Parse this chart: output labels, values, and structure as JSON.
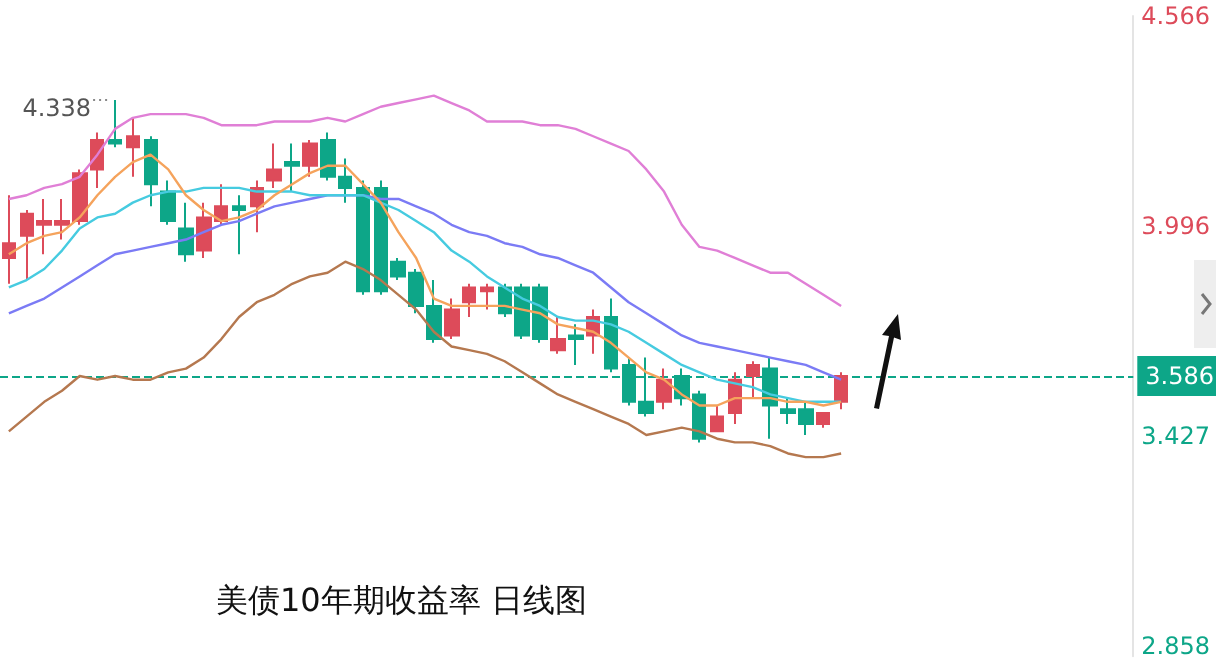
{
  "chart_data": {
    "type": "candlestick",
    "title": "美债10年期收益率 日线图",
    "categories": [
      null,
      null,
      null,
      null,
      null,
      null,
      null,
      null,
      null,
      null,
      null,
      null,
      null,
      null,
      null,
      null,
      null,
      null,
      null,
      null,
      null,
      null,
      null,
      null,
      null,
      null,
      null,
      null,
      null,
      null,
      null,
      null,
      null,
      null,
      null,
      null,
      null,
      null,
      null,
      null,
      null,
      null,
      null,
      null,
      null,
      null,
      null,
      null
    ],
    "ohlc": [
      [
        3.91,
        4.08,
        3.84,
        3.95
      ],
      [
        3.97,
        4.04,
        3.85,
        4.03
      ],
      [
        4.0,
        4.07,
        3.92,
        4.01
      ],
      [
        4.0,
        4.07,
        3.96,
        4.01
      ],
      [
        4.01,
        4.15,
        4.0,
        4.14
      ],
      [
        4.15,
        4.25,
        4.1,
        4.23
      ],
      [
        4.23,
        4.338,
        4.21,
        4.22
      ],
      [
        4.21,
        4.29,
        4.13,
        4.24
      ],
      [
        4.23,
        4.24,
        4.05,
        4.11
      ],
      [
        4.09,
        4.12,
        4.0,
        4.01
      ],
      [
        3.99,
        4.06,
        3.9,
        3.92
      ],
      [
        3.93,
        4.06,
        3.91,
        4.02
      ],
      [
        4.01,
        4.11,
        4.0,
        4.05
      ],
      [
        4.05,
        4.08,
        3.92,
        4.04
      ],
      [
        4.05,
        4.12,
        3.98,
        4.1
      ],
      [
        4.12,
        4.22,
        4.1,
        4.15
      ],
      [
        4.17,
        4.22,
        4.09,
        4.16
      ],
      [
        4.16,
        4.23,
        4.13,
        4.22
      ],
      [
        4.23,
        4.25,
        4.12,
        4.13
      ],
      [
        4.13,
        4.18,
        4.06,
        4.1
      ],
      [
        4.1,
        4.12,
        3.81,
        3.82
      ],
      [
        4.1,
        4.12,
        3.81,
        3.82
      ],
      [
        3.9,
        3.91,
        3.85,
        3.86
      ],
      [
        3.87,
        3.88,
        3.76,
        3.78
      ],
      [
        3.78,
        3.85,
        3.68,
        3.69
      ],
      [
        3.7,
        3.8,
        3.69,
        3.77
      ],
      [
        3.79,
        3.84,
        3.75,
        3.83
      ],
      [
        3.82,
        3.84,
        3.77,
        3.83
      ],
      [
        3.83,
        3.84,
        3.75,
        3.76
      ],
      [
        3.83,
        3.84,
        3.69,
        3.7
      ],
      [
        3.83,
        3.84,
        3.68,
        3.69
      ],
      [
        3.66,
        3.75,
        3.65,
        3.69
      ],
      [
        3.7,
        3.73,
        3.62,
        3.69
      ],
      [
        3.7,
        3.77,
        3.65,
        3.75
      ],
      [
        3.75,
        3.8,
        3.6,
        3.61
      ],
      [
        3.62,
        3.64,
        3.51,
        3.52
      ],
      [
        3.52,
        3.64,
        3.48,
        3.49
      ],
      [
        3.52,
        3.61,
        3.5,
        3.58
      ],
      [
        3.59,
        3.61,
        3.51,
        3.53
      ],
      [
        3.54,
        3.55,
        3.41,
        3.42
      ],
      [
        3.44,
        3.51,
        3.44,
        3.48
      ],
      [
        3.49,
        3.6,
        3.46,
        3.58
      ],
      [
        3.59,
        3.63,
        3.53,
        3.62
      ],
      [
        3.61,
        3.64,
        3.42,
        3.51
      ],
      [
        3.5,
        3.53,
        3.46,
        3.49
      ],
      [
        3.5,
        3.52,
        3.43,
        3.46
      ],
      [
        3.46,
        3.49,
        3.45,
        3.49
      ],
      [
        3.52,
        3.6,
        3.5,
        3.59
      ]
    ],
    "colors": [
      "#dd4b5a",
      "#dd4b5a",
      "#dd4b5a",
      "#dd4b5a",
      "#dd4b5a",
      "#dd4b5a",
      "#0da688",
      "#dd4b5a",
      "#0da688",
      "#0da688",
      "#0da688",
      "#dd4b5a",
      "#dd4b5a",
      "#0da688",
      "#dd4b5a",
      "#dd4b5a",
      "#0da688",
      "#dd4b5a",
      "#0da688",
      "#0da688",
      "#0da688",
      "#0da688",
      "#0da688",
      "#0da688",
      "#0da688",
      "#dd4b5a",
      "#dd4b5a",
      "#dd4b5a",
      "#0da688",
      "#0da688",
      "#0da688",
      "#dd4b5a",
      "#0da688",
      "#dd4b5a",
      "#0da688",
      "#0da688",
      "#0da688",
      "#dd4b5a",
      "#0da688",
      "#0da688",
      "#dd4b5a",
      "#dd4b5a",
      "#dd4b5a",
      "#0da688",
      "#0da688",
      "#0da688",
      "#dd4b5a",
      "#dd4b5a"
    ],
    "series": [
      {
        "type": "line",
        "color": "#e07fd6",
        "values": [
          4.07,
          4.08,
          4.1,
          4.11,
          4.13,
          4.19,
          4.26,
          4.29,
          4.3,
          4.3,
          4.3,
          4.29,
          4.27,
          4.27,
          4.27,
          4.28,
          4.28,
          4.28,
          4.29,
          4.28,
          4.3,
          4.32,
          4.33,
          4.34,
          4.35,
          4.33,
          4.31,
          4.28,
          4.28,
          4.28,
          4.27,
          4.27,
          4.26,
          4.24,
          4.22,
          4.2,
          4.15,
          4.09,
          4.0,
          3.94,
          3.93,
          3.91,
          3.89,
          3.87,
          3.87,
          3.84,
          3.81,
          3.78
        ]
      },
      {
        "type": "line",
        "color": "#7b7bf5",
        "values": [
          3.76,
          3.78,
          3.8,
          3.83,
          3.86,
          3.89,
          3.92,
          3.93,
          3.94,
          3.95,
          3.96,
          3.98,
          4.0,
          4.01,
          4.03,
          4.05,
          4.06,
          4.07,
          4.08,
          4.08,
          4.08,
          4.07,
          4.07,
          4.05,
          4.03,
          4.0,
          3.98,
          3.97,
          3.95,
          3.94,
          3.92,
          3.91,
          3.89,
          3.87,
          3.83,
          3.79,
          3.76,
          3.73,
          3.7,
          3.68,
          3.67,
          3.66,
          3.65,
          3.64,
          3.63,
          3.62,
          3.6,
          3.58
        ]
      },
      {
        "type": "line",
        "color": "#b5784f",
        "values": [
          3.44,
          3.48,
          3.52,
          3.55,
          3.59,
          3.58,
          3.59,
          3.58,
          3.58,
          3.6,
          3.61,
          3.64,
          3.69,
          3.75,
          3.79,
          3.81,
          3.84,
          3.86,
          3.87,
          3.9,
          3.88,
          3.85,
          3.81,
          3.77,
          3.71,
          3.67,
          3.66,
          3.65,
          3.63,
          3.6,
          3.57,
          3.54,
          3.52,
          3.5,
          3.48,
          3.46,
          3.43,
          3.44,
          3.45,
          3.44,
          3.42,
          3.41,
          3.41,
          3.4,
          3.38,
          3.37,
          3.37,
          3.38
        ]
      },
      {
        "type": "line",
        "color": "#46cbe0",
        "values": [
          3.83,
          3.85,
          3.88,
          3.93,
          3.99,
          4.02,
          4.03,
          4.06,
          4.08,
          4.09,
          4.09,
          4.1,
          4.1,
          4.1,
          4.09,
          4.09,
          4.09,
          4.08,
          4.08,
          4.08,
          4.08,
          4.06,
          4.04,
          4.01,
          3.98,
          3.93,
          3.9,
          3.86,
          3.83,
          3.8,
          3.78,
          3.75,
          3.74,
          3.74,
          3.73,
          3.71,
          3.68,
          3.65,
          3.62,
          3.6,
          3.58,
          3.57,
          3.56,
          3.54,
          3.53,
          3.52,
          3.52,
          3.52
        ]
      },
      {
        "type": "line",
        "color": "#f5a35c",
        "values": [
          3.92,
          3.95,
          3.97,
          3.98,
          4.02,
          4.08,
          4.13,
          4.17,
          4.19,
          4.15,
          4.08,
          4.04,
          4.01,
          4.02,
          4.04,
          4.08,
          4.11,
          4.14,
          4.16,
          4.16,
          4.11,
          4.06,
          3.98,
          3.91,
          3.8,
          3.78,
          3.78,
          3.78,
          3.78,
          3.77,
          3.76,
          3.73,
          3.72,
          3.71,
          3.68,
          3.64,
          3.6,
          3.58,
          3.54,
          3.51,
          3.51,
          3.53,
          3.53,
          3.53,
          3.52,
          3.52,
          3.51,
          3.52
        ]
      }
    ],
    "ylim": [
      2.83,
      4.566
    ],
    "yticks": [
      4.566,
      3.996,
      3.427,
      2.858
    ],
    "ref_lines": [
      {
        "axis": "y",
        "value": 3.586,
        "label": "3.586",
        "color": "#0da688",
        "line_style": "dashed"
      }
    ],
    "annotations": [
      "4.338"
    ],
    "marker": "none",
    "tick_labels": "y"
  }
}
